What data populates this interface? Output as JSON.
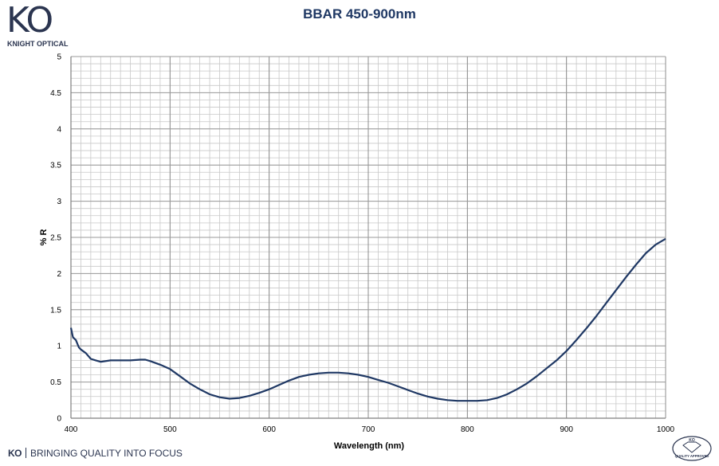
{
  "brand": {
    "logo_text": "KO",
    "logo_sub": "KNIGHT OPTICAL",
    "tagline_mark": "KO",
    "tagline": "BRINGING QUALITY INTO FOCUS",
    "badge_top": "KO",
    "badge_bottom": "QUALITY APPROVED"
  },
  "colors": {
    "line": "#1f3864",
    "grid": "#c8c8c8",
    "axis": "#7f7f7f",
    "brand": "#2b3550"
  },
  "chart_data": {
    "type": "line",
    "title": "BBAR 450-900nm",
    "xlabel": "Wavelength (nm)",
    "ylabel": "% R",
    "xlim": [
      400,
      1000
    ],
    "ylim": [
      0,
      5
    ],
    "x_ticks": [
      400,
      500,
      600,
      700,
      800,
      900,
      1000
    ],
    "y_ticks": [
      0,
      0.5,
      1,
      1.5,
      2,
      2.5,
      3,
      3.5,
      4,
      4.5,
      5
    ],
    "grid": true,
    "legend": "none",
    "series": [
      {
        "x": [
          400,
          402,
          405,
          408,
          410,
          415,
          420,
          425,
          430,
          440,
          450,
          460,
          470,
          475,
          480,
          490,
          500,
          510,
          520,
          530,
          540,
          550,
          560,
          570,
          580,
          590,
          600,
          610,
          620,
          630,
          640,
          650,
          660,
          670,
          680,
          690,
          700,
          710,
          720,
          730,
          740,
          750,
          760,
          770,
          780,
          790,
          800,
          810,
          820,
          830,
          840,
          850,
          860,
          870,
          880,
          890,
          900,
          910,
          920,
          930,
          940,
          950,
          960,
          970,
          980,
          990,
          1000
        ],
        "y": [
          1.25,
          1.12,
          1.08,
          0.98,
          0.95,
          0.9,
          0.82,
          0.8,
          0.78,
          0.8,
          0.8,
          0.8,
          0.81,
          0.81,
          0.79,
          0.74,
          0.68,
          0.58,
          0.48,
          0.4,
          0.33,
          0.29,
          0.27,
          0.28,
          0.31,
          0.35,
          0.4,
          0.46,
          0.52,
          0.57,
          0.6,
          0.62,
          0.63,
          0.63,
          0.62,
          0.6,
          0.57,
          0.53,
          0.49,
          0.44,
          0.39,
          0.34,
          0.3,
          0.27,
          0.25,
          0.24,
          0.24,
          0.24,
          0.25,
          0.28,
          0.33,
          0.4,
          0.48,
          0.58,
          0.69,
          0.8,
          0.93,
          1.08,
          1.24,
          1.41,
          1.59,
          1.77,
          1.95,
          2.12,
          2.28,
          2.4,
          2.48
        ]
      }
    ]
  }
}
